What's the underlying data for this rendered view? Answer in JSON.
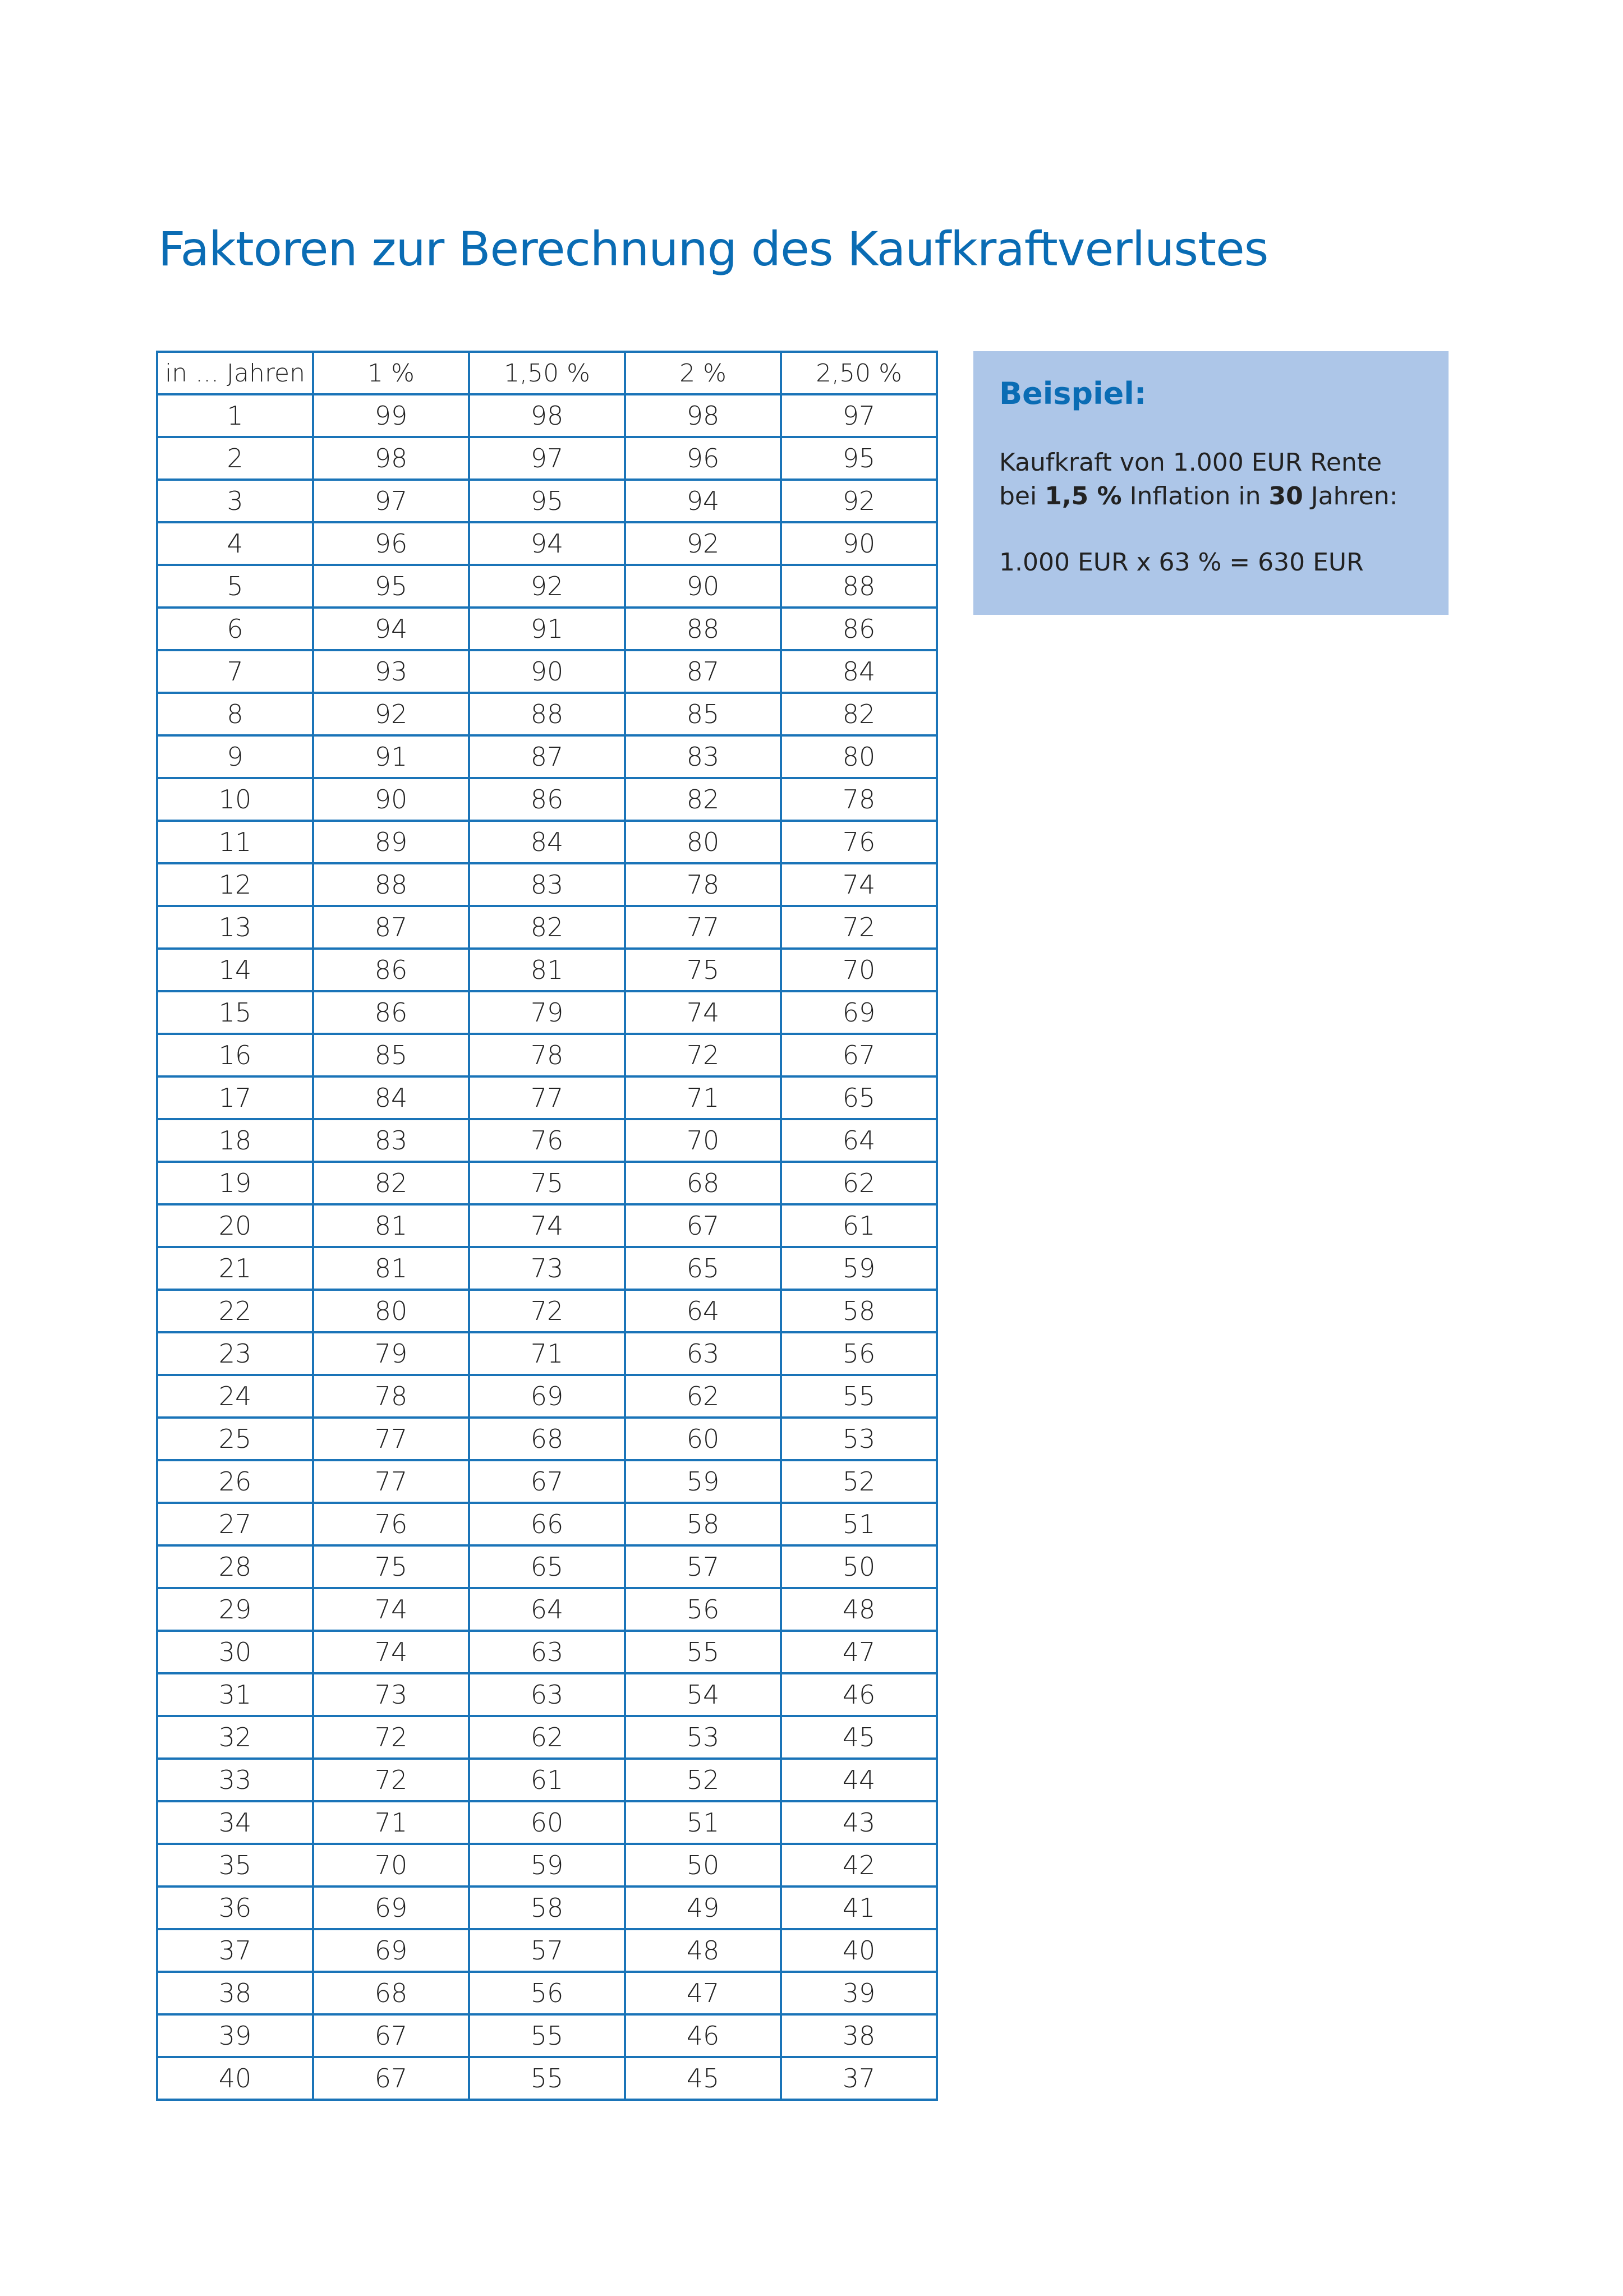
{
  "title": "Faktoren zur Berechnung des Kaufkraftverlustes",
  "table": {
    "headers": [
      "in ... Jahren",
      "1 %",
      "1,50 %",
      "2 %",
      "2,50 %"
    ],
    "rows": [
      [
        "1",
        "99",
        "98",
        "98",
        "97"
      ],
      [
        "2",
        "98",
        "97",
        "96",
        "95"
      ],
      [
        "3",
        "97",
        "95",
        "94",
        "92"
      ],
      [
        "4",
        "96",
        "94",
        "92",
        "90"
      ],
      [
        "5",
        "95",
        "92",
        "90",
        "88"
      ],
      [
        "6",
        "94",
        "91",
        "88",
        "86"
      ],
      [
        "7",
        "93",
        "90",
        "87",
        "84"
      ],
      [
        "8",
        "92",
        "88",
        "85",
        "82"
      ],
      [
        "9",
        "91",
        "87",
        "83",
        "80"
      ],
      [
        "10",
        "90",
        "86",
        "82",
        "78"
      ],
      [
        "11",
        "89",
        "84",
        "80",
        "76"
      ],
      [
        "12",
        "88",
        "83",
        "78",
        "74"
      ],
      [
        "13",
        "87",
        "82",
        "77",
        "72"
      ],
      [
        "14",
        "86",
        "81",
        "75",
        "70"
      ],
      [
        "15",
        "86",
        "79",
        "74",
        "69"
      ],
      [
        "16",
        "85",
        "78",
        "72",
        "67"
      ],
      [
        "17",
        "84",
        "77",
        "71",
        "65"
      ],
      [
        "18",
        "83",
        "76",
        "70",
        "64"
      ],
      [
        "19",
        "82",
        "75",
        "68",
        "62"
      ],
      [
        "20",
        "81",
        "74",
        "67",
        "61"
      ],
      [
        "21",
        "81",
        "73",
        "65",
        "59"
      ],
      [
        "22",
        "80",
        "72",
        "64",
        "58"
      ],
      [
        "23",
        "79",
        "71",
        "63",
        "56"
      ],
      [
        "24",
        "78",
        "69",
        "62",
        "55"
      ],
      [
        "25",
        "77",
        "68",
        "60",
        "53"
      ],
      [
        "26",
        "77",
        "67",
        "59",
        "52"
      ],
      [
        "27",
        "76",
        "66",
        "58",
        "51"
      ],
      [
        "28",
        "75",
        "65",
        "57",
        "50"
      ],
      [
        "29",
        "74",
        "64",
        "56",
        "48"
      ],
      [
        "30",
        "74",
        "63",
        "55",
        "47"
      ],
      [
        "31",
        "73",
        "63",
        "54",
        "46"
      ],
      [
        "32",
        "72",
        "62",
        "53",
        "45"
      ],
      [
        "33",
        "72",
        "61",
        "52",
        "44"
      ],
      [
        "34",
        "71",
        "60",
        "51",
        "43"
      ],
      [
        "35",
        "70",
        "59",
        "50",
        "42"
      ],
      [
        "36",
        "69",
        "58",
        "49",
        "41"
      ],
      [
        "37",
        "69",
        "57",
        "48",
        "40"
      ],
      [
        "38",
        "68",
        "56",
        "47",
        "39"
      ],
      [
        "39",
        "67",
        "55",
        "46",
        "38"
      ],
      [
        "40",
        "67",
        "55",
        "45",
        "37"
      ]
    ]
  },
  "example": {
    "heading": "Beispiel:",
    "line1": "Kaufkraft von 1.000 EUR Rente",
    "line2_pre": "bei ",
    "line2_rate": "1,5 %",
    "line2_mid": " Inflation in ",
    "line2_years": "30",
    "line2_post": " Jahren:",
    "formula": "1.000 EUR x 63 % = 630 EUR"
  },
  "colors": {
    "accent": "#0a6cb4",
    "box_background": "#adc6e8",
    "table_border": "#1a74b8"
  }
}
